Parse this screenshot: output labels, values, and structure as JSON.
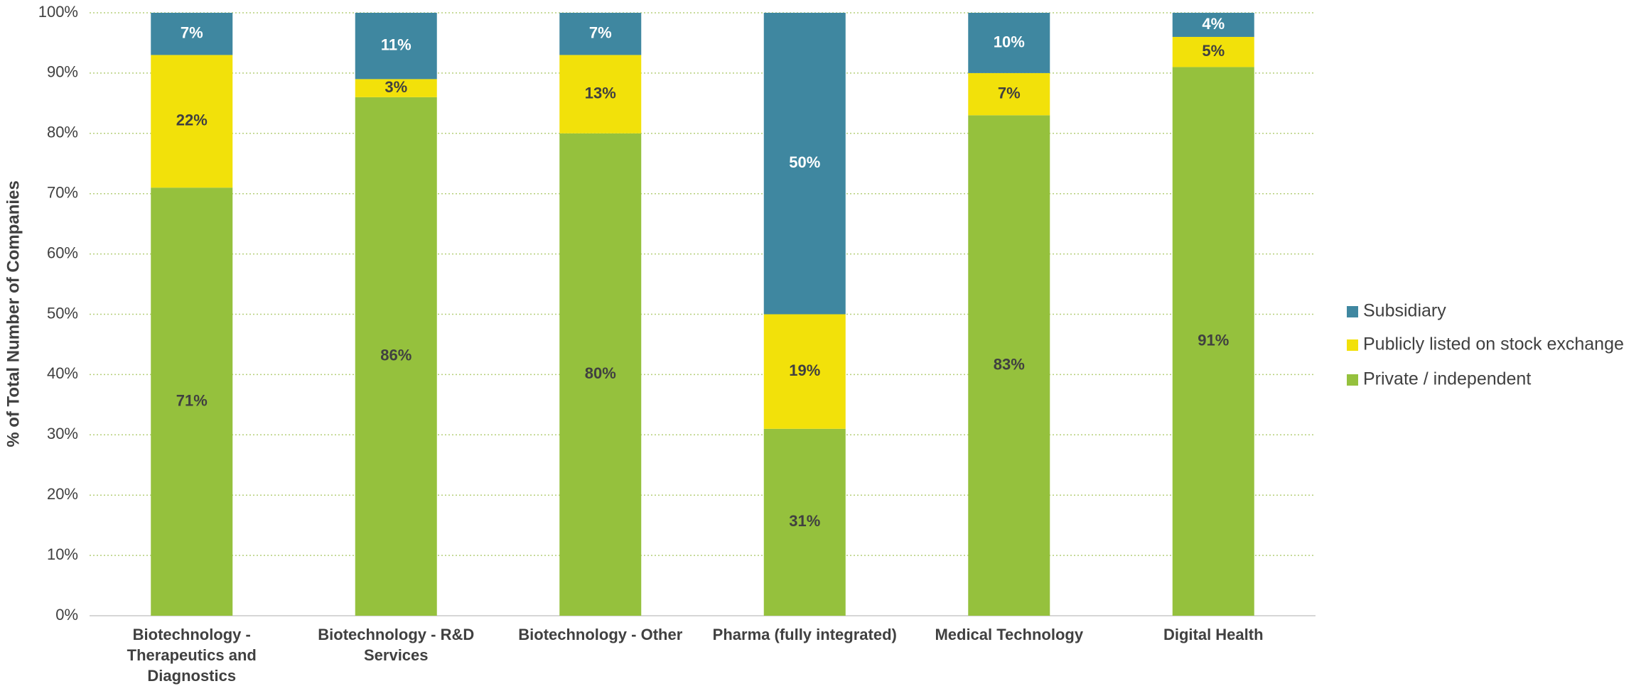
{
  "chart_data": {
    "type": "stacked_bar",
    "y_label": "% of Total Number of Companies",
    "categories": [
      "Biotechnology - Therapeutics and Diagnostics",
      "Biotechnology - R&D Services",
      "Biotechnology - Other",
      "Pharma (fully integrated)",
      "Medical Technology",
      "Digital Health"
    ],
    "series": [
      {
        "name": "Private / independent",
        "color": "#95c13d",
        "label_color": "#404040",
        "values": [
          71,
          86,
          80,
          31,
          83,
          91
        ],
        "value_labels": [
          "71%",
          "86%",
          "80%",
          "31%",
          "83%",
          "91%"
        ]
      },
      {
        "name": "Publicly listed on stock exchange",
        "color": "#f2e10a",
        "label_color": "#404040",
        "values": [
          22,
          3,
          13,
          19,
          7,
          5
        ],
        "value_labels": [
          "22%",
          "3%",
          "13%",
          "19%",
          "7%",
          "5%"
        ]
      },
      {
        "name": "Subsidiary",
        "color": "#3f87a0",
        "label_color": "#ffffff",
        "values": [
          7,
          11,
          7,
          50,
          10,
          4
        ],
        "value_labels": [
          "7%",
          "11%",
          "7%",
          "50%",
          "10%",
          "4%"
        ]
      }
    ],
    "ylim": [
      0,
      100
    ],
    "yticks": [
      {
        "value": 0,
        "label": "0%"
      },
      {
        "value": 10,
        "label": "10%"
      },
      {
        "value": 20,
        "label": "20%"
      },
      {
        "value": 30,
        "label": "30%"
      },
      {
        "value": 40,
        "label": "40%"
      },
      {
        "value": 50,
        "label": "50%"
      },
      {
        "value": 60,
        "label": "60%"
      },
      {
        "value": 70,
        "label": "70%"
      },
      {
        "value": 80,
        "label": "80%"
      },
      {
        "value": 90,
        "label": "90%"
      },
      {
        "value": 100,
        "label": "100%"
      }
    ],
    "grid": true,
    "legend": "right"
  }
}
